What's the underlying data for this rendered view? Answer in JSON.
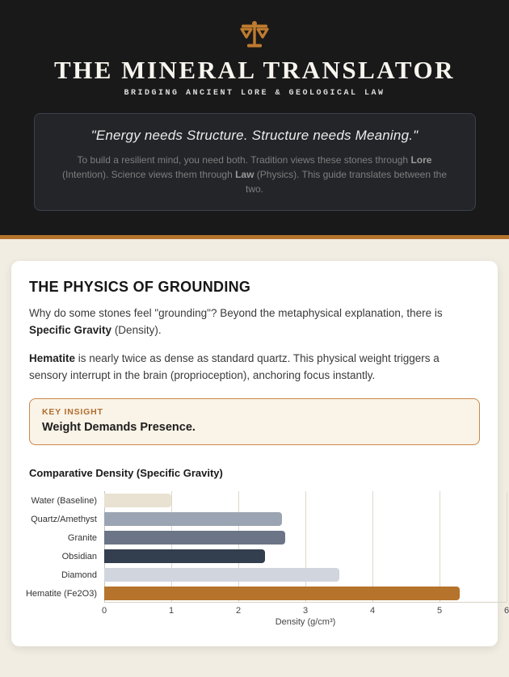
{
  "colors": {
    "accent": "#b5732c",
    "header_bg": "#191919",
    "page_bg": "#f1ede3",
    "card_bg": "#ffffff",
    "insight_border": "#c9884b",
    "insight_bg": "#faf3e7"
  },
  "header": {
    "icon": "scales-icon",
    "title": "THE MINERAL TRANSLATOR",
    "subtitle": "BRIDGING ANCIENT LORE & GEOLOGICAL LAW",
    "quote": "\"Energy needs Structure. Structure needs Meaning.\"",
    "note": {
      "part1": "To build a resilient mind, you need both. Tradition views these stones through ",
      "bold1": "Lore",
      "part2": " (Intention). Science views them through ",
      "bold2": "Law",
      "part3": " (Physics). This guide translates between the two."
    }
  },
  "section": {
    "title": "THE PHYSICS OF GROUNDING",
    "p1": {
      "part1": "Why do some stones feel \"grounding\"? Beyond the metaphysical explanation, there is ",
      "bold1": "Specific Gravity",
      "part2": " (Density)."
    },
    "p2": {
      "bold1": "Hematite",
      "part1": " is nearly twice as dense as standard quartz. This physical weight triggers a sensory interrupt in the brain (proprioception), anchoring focus instantly."
    },
    "insight": {
      "label": "KEY INSIGHT",
      "text": "Weight Demands Presence."
    }
  },
  "chart_data": {
    "type": "bar",
    "orientation": "horizontal",
    "title": "Comparative Density (Specific Gravity)",
    "categories": [
      "Water (Baseline)",
      "Quartz/Amethyst",
      "Granite",
      "Obsidian",
      "Diamond",
      "Hematite (Fe2O3)"
    ],
    "values": [
      1.0,
      2.65,
      2.7,
      2.4,
      3.5,
      5.3
    ],
    "bar_colors": [
      "#e9e2d2",
      "#9ba4b2",
      "#6b7587",
      "#333e4e",
      "#d0d5de",
      "#b5732c"
    ],
    "xlabel": "Density (g/cm³)",
    "xlim": [
      0,
      6
    ],
    "xticks": [
      0,
      1,
      2,
      3,
      4,
      5,
      6
    ],
    "grid": true,
    "legend": false
  }
}
